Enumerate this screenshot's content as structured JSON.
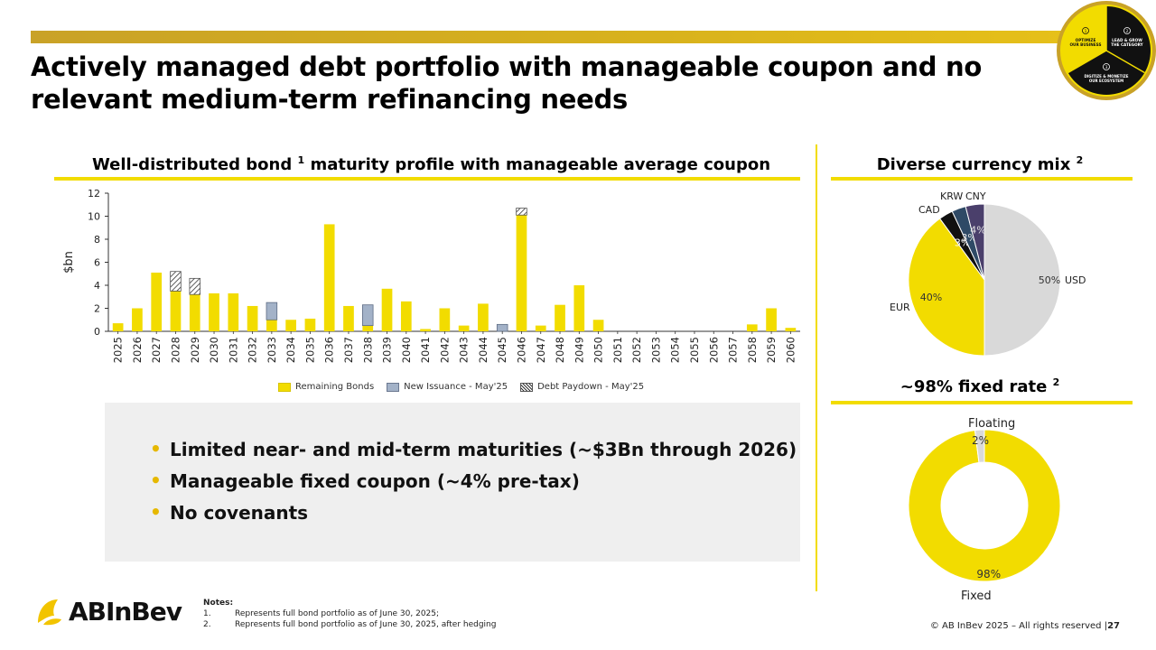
{
  "title": "Actively managed debt portfolio with manageable coupon and no relevant medium-term refinancing needs",
  "badge": {
    "segments": [
      {
        "num": "1",
        "text": "OPTIMIZE OUR BUSINESS"
      },
      {
        "num": "2",
        "text": "LEAD & GROW THE CATEGORY"
      },
      {
        "num": "3",
        "text": "DIGITIZE & MONETIZE OUR ECOSYSTEM"
      }
    ]
  },
  "left_section": {
    "title": "Well-distributed bond",
    "sup": "1",
    "title_rest": "maturity profile with manageable average coupon"
  },
  "currency_section": {
    "title": "Diverse currency mix",
    "sup": "2"
  },
  "fixed_section": {
    "title": "~98% fixed rate",
    "sup": "2"
  },
  "chart_data": [
    {
      "type": "bar",
      "title": "",
      "ylabel": "$bn",
      "ylim": [
        0,
        12
      ],
      "yticks": [
        "0",
        "2",
        "4",
        "6",
        "8",
        "10",
        "12"
      ],
      "categories": [
        "2025",
        "2026",
        "2027",
        "2028",
        "2029",
        "2030",
        "2031",
        "2032",
        "2033",
        "2034",
        "2035",
        "2036",
        "2037",
        "2038",
        "2039",
        "2040",
        "2041",
        "2042",
        "2043",
        "2044",
        "2045",
        "2046",
        "2047",
        "2048",
        "2049",
        "2050",
        "2051",
        "2052",
        "2053",
        "2054",
        "2055",
        "2056",
        "2057",
        "2058",
        "2059",
        "2060"
      ],
      "series": [
        {
          "name": "Remaining Bonds",
          "color": "#f2dc00",
          "values": [
            0.7,
            2.0,
            5.1,
            3.5,
            3.2,
            3.3,
            3.3,
            2.2,
            1.0,
            1.0,
            1.1,
            9.3,
            2.2,
            0.5,
            3.7,
            2.6,
            0.2,
            2.0,
            0.5,
            2.4,
            0,
            10.1,
            0.5,
            2.3,
            4.0,
            1.0,
            0,
            0,
            0,
            0,
            0,
            0,
            0,
            0.6,
            2.0,
            0.3
          ]
        },
        {
          "name": "New Issuance - May'25",
          "color": "#a3b2c8",
          "values": [
            0,
            0,
            0,
            0,
            0,
            0,
            0,
            0,
            1.5,
            0,
            0,
            0,
            0,
            1.8,
            0,
            0,
            0,
            0,
            0,
            0,
            0.6,
            0,
            0,
            0,
            0,
            0,
            0,
            0,
            0,
            0,
            0,
            0,
            0,
            0,
            0,
            0
          ]
        },
        {
          "name": "Debt Paydown - May'25",
          "color": "hatch",
          "values": [
            0,
            0,
            0,
            1.7,
            1.4,
            0,
            0,
            0,
            0,
            0,
            0,
            0,
            0,
            0,
            0,
            0,
            0,
            0,
            0,
            0,
            0,
            0.6,
            0,
            0,
            0,
            0,
            0,
            0,
            0,
            0,
            0,
            0,
            0,
            0,
            0,
            0
          ]
        }
      ]
    },
    {
      "type": "pie",
      "title": "",
      "labels": [
        "USD",
        "EUR",
        "CAD",
        "KRW",
        "CNY"
      ],
      "values": [
        50,
        40,
        3,
        3,
        4
      ],
      "value_labels": [
        "50%",
        "40%",
        "3%",
        "3%",
        "4%"
      ],
      "colors": [
        "#d9d9d9",
        "#f2dc00",
        "#111111",
        "#2f4a66",
        "#4a3f6b"
      ]
    },
    {
      "type": "pie",
      "title": "",
      "labels": [
        "Fixed",
        "Floating"
      ],
      "values": [
        98,
        2
      ],
      "value_labels": [
        "98%",
        "2%"
      ],
      "colors": [
        "#f2dc00",
        "#d9d9d9"
      ]
    }
  ],
  "bullets": [
    "Limited near- and mid-term maturities (~$3Bn through 2026)",
    "Manageable fixed coupon (~4% pre-tax)",
    "No covenants"
  ],
  "logo": {
    "text": "ABInBev"
  },
  "notes": {
    "heading": "Notes:",
    "items": [
      {
        "num": "1.",
        "text": "Represents full bond portfolio as of June 30, 2025;"
      },
      {
        "num": "2.",
        "text": "Represents full bond portfolio as of June 30, 2025, after hedging"
      }
    ]
  },
  "footer": {
    "copyright": "© AB InBev 2025 – All rights reserved |",
    "page": "27"
  }
}
